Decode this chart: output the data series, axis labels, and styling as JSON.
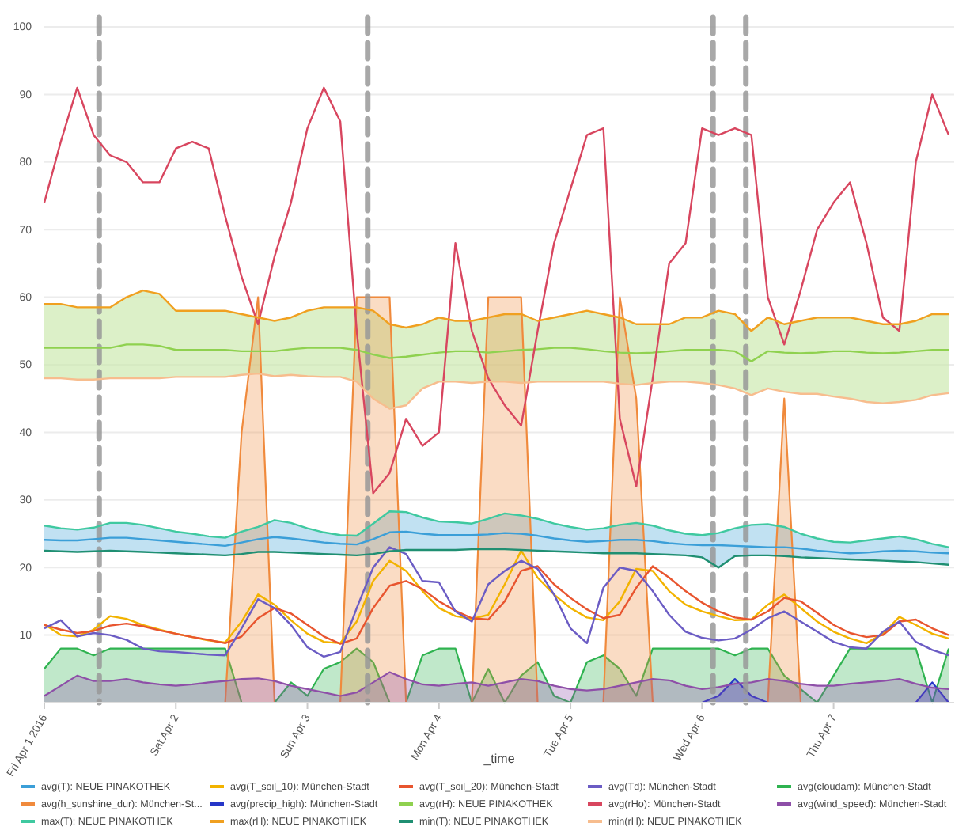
{
  "chart_data": {
    "type": "line",
    "xlabel": "_time",
    "legend": "bottom",
    "grid": "y",
    "xlim": [
      "2016-04-01T00:00",
      "2016-04-07T22:00"
    ],
    "xticks": [
      {
        "value": "2016-04-01",
        "label": "Fri Apr 1 2016"
      },
      {
        "value": "2016-04-02",
        "label": "Sat Apr 2"
      },
      {
        "value": "2016-04-03",
        "label": "Sun Apr 3"
      },
      {
        "value": "2016-04-04",
        "label": "Mon Apr 4"
      },
      {
        "value": "2016-04-05",
        "label": "Tue Apr 5"
      },
      {
        "value": "2016-04-06",
        "label": "Wed Apr 6"
      },
      {
        "value": "2016-04-07",
        "label": "Thu Apr 7"
      }
    ],
    "ylim": [
      0,
      100
    ],
    "yticks": [
      10,
      20,
      30,
      40,
      50,
      60,
      70,
      80,
      90,
      100
    ],
    "ref_lines": [
      {
        "axis": "x",
        "value": "2016-04-01T10:00",
        "color": "#999999",
        "line_style": "dashed"
      },
      {
        "axis": "x",
        "value": "2016-04-03T11:00",
        "color": "#999999",
        "line_style": "dashed"
      },
      {
        "axis": "x",
        "value": "2016-04-06T02:00",
        "color": "#999999",
        "line_style": "dashed"
      },
      {
        "axis": "x",
        "value": "2016-04-06T08:00",
        "color": "#999999",
        "line_style": "dashed"
      }
    ],
    "x": [
      "2016-04-01T00:00",
      "2016-04-01T03:00",
      "2016-04-01T06:00",
      "2016-04-01T09:00",
      "2016-04-01T12:00",
      "2016-04-01T15:00",
      "2016-04-01T18:00",
      "2016-04-01T21:00",
      "2016-04-02T00:00",
      "2016-04-02T03:00",
      "2016-04-02T06:00",
      "2016-04-02T09:00",
      "2016-04-02T12:00",
      "2016-04-02T15:00",
      "2016-04-02T18:00",
      "2016-04-02T21:00",
      "2016-04-03T00:00",
      "2016-04-03T03:00",
      "2016-04-03T06:00",
      "2016-04-03T09:00",
      "2016-04-03T12:00",
      "2016-04-03T15:00",
      "2016-04-03T18:00",
      "2016-04-03T21:00",
      "2016-04-04T00:00",
      "2016-04-04T03:00",
      "2016-04-04T06:00",
      "2016-04-04T09:00",
      "2016-04-04T12:00",
      "2016-04-04T15:00",
      "2016-04-04T18:00",
      "2016-04-04T21:00",
      "2016-04-05T00:00",
      "2016-04-05T03:00",
      "2016-04-05T06:00",
      "2016-04-05T09:00",
      "2016-04-05T12:00",
      "2016-04-05T15:00",
      "2016-04-05T18:00",
      "2016-04-05T21:00",
      "2016-04-06T00:00",
      "2016-04-06T03:00",
      "2016-04-06T06:00",
      "2016-04-06T09:00",
      "2016-04-06T12:00",
      "2016-04-06T15:00",
      "2016-04-06T18:00",
      "2016-04-06T21:00",
      "2016-04-07T00:00",
      "2016-04-07T03:00",
      "2016-04-07T06:00",
      "2016-04-07T09:00",
      "2016-04-07T12:00",
      "2016-04-07T15:00",
      "2016-04-07T18:00",
      "2016-04-07T21:00"
    ],
    "series": [
      {
        "name": "avg(T): NEUE PINAKOTHEK",
        "type": "line",
        "color": "#3b9fd8",
        "values": [
          24.1,
          24,
          24,
          24.2,
          24.4,
          24.4,
          24.2,
          24,
          23.8,
          23.6,
          23.4,
          23.2,
          23.7,
          24.2,
          24.5,
          24.3,
          24,
          23.7,
          23.5,
          23.4,
          24.2,
          25.2,
          25.3,
          25,
          24.8,
          24.8,
          24.8,
          24.9,
          25.1,
          25,
          24.7,
          24.3,
          24,
          23.8,
          23.9,
          24.1,
          24.1,
          23.9,
          23.6,
          23.4,
          23.3,
          23.3,
          23.2,
          23.1,
          23,
          23,
          22.8,
          22.5,
          22.3,
          22.1,
          22.2,
          22.4,
          22.5,
          22.4,
          22.2,
          22.1
        ],
        "lower": [
          22.5,
          22.4,
          22.3,
          22.4,
          22.5,
          22.4,
          22.3,
          22.2,
          22.1,
          22,
          21.9,
          21.8,
          22,
          22.3,
          22.3,
          22.2,
          22.1,
          22,
          21.9,
          21.8,
          22,
          22.4,
          22.6,
          22.6,
          22.6,
          22.6,
          22.7,
          22.7,
          22.7,
          22.6,
          22.5,
          22.4,
          22.3,
          22.2,
          22.1,
          22.1,
          22.1,
          22,
          21.9,
          21.8,
          21.5,
          20,
          21.7,
          21.8,
          21.8,
          21.7,
          21.5,
          21.4,
          21.3,
          21.2,
          21.1,
          21,
          20.9,
          20.8,
          20.6,
          20.4
        ],
        "upper": [
          26.2,
          25.8,
          25.6,
          25.9,
          26.6,
          26.6,
          26.3,
          25.8,
          25.3,
          25,
          24.6,
          24.4,
          25.3,
          26,
          27,
          26.6,
          25.8,
          25.2,
          24.8,
          24.7,
          26.5,
          28.3,
          28.2,
          27.4,
          26.8,
          26.7,
          26.5,
          27.2,
          28,
          27.7,
          27.2,
          26.5,
          26,
          25.6,
          25.8,
          26.3,
          26.6,
          26.2,
          25.5,
          25,
          24.8,
          25.1,
          25.8,
          26.3,
          26.4,
          26,
          25,
          24.3,
          23.8,
          23.7,
          24,
          24.3,
          24.6,
          24.2,
          23.5,
          23
        ]
      },
      {
        "name": "avg(T_soil_10): München-Stadt",
        "type": "line",
        "color": "#f2b300",
        "values": [
          11.6,
          10,
          9.8,
          10.8,
          12.8,
          12.4,
          11.5,
          10.8,
          10.2,
          9.7,
          9.2,
          8.9,
          12,
          16,
          14.5,
          12.2,
          10.2,
          9,
          8.8,
          12,
          18,
          21,
          19.5,
          16.5,
          14,
          12.8,
          12.4,
          13,
          17.5,
          22.5,
          18.5,
          16,
          14,
          12.6,
          12.2,
          15,
          19.8,
          19.5,
          16.5,
          14.5,
          13.5,
          12.8,
          12.2,
          12.3,
          14.5,
          16,
          14,
          12,
          10.5,
          9.5,
          8.8,
          10.2,
          12.7,
          11.5,
          10.2,
          9.5
        ]
      },
      {
        "name": "avg(T_soil_20): München-Stadt",
        "type": "line",
        "color": "#e8552f",
        "values": [
          11.5,
          10.8,
          10.3,
          10.6,
          11.4,
          11.7,
          11.3,
          10.7,
          10.2,
          9.7,
          9.3,
          8.8,
          9.8,
          12.5,
          14,
          13.2,
          11.5,
          9.8,
          8.7,
          9.5,
          14,
          17.3,
          18,
          16.8,
          15,
          13.6,
          12.5,
          12.3,
          15,
          19.5,
          20.2,
          17.5,
          15.5,
          13.8,
          12.5,
          13,
          17,
          20.2,
          18.5,
          16.5,
          14.8,
          13.5,
          12.6,
          12.3,
          13.5,
          15.5,
          15,
          13.3,
          11.5,
          10.3,
          9.7,
          10,
          12,
          12.3,
          11,
          10
        ]
      },
      {
        "name": "avg(Td): München-Stadt",
        "type": "line",
        "color": "#6b5cc4",
        "values": [
          11,
          12.2,
          9.8,
          10.3,
          10,
          9.3,
          8,
          7.6,
          7.5,
          7.3,
          7.1,
          7,
          11,
          15.3,
          14,
          11.5,
          8.2,
          6.8,
          7.5,
          14,
          20,
          23,
          22,
          18,
          17.8,
          13.5,
          12,
          17.5,
          19.5,
          21,
          19.8,
          16,
          11,
          8.8,
          17,
          20,
          19.5,
          16.5,
          13,
          10.5,
          9.6,
          9.2,
          9.5,
          10.8,
          12.5,
          13.5,
          12,
          10.5,
          9,
          8.2,
          8,
          10.5,
          12,
          9,
          7.8,
          7
        ]
      },
      {
        "name": "avg(cloudam): München-Stadt",
        "type": "area",
        "color": "#2fb350",
        "values": [
          5,
          8,
          8,
          7,
          8,
          8,
          8,
          8,
          8,
          8,
          8,
          8,
          0,
          0,
          0,
          3,
          1,
          5,
          6,
          8,
          6,
          0,
          0,
          7,
          8,
          8,
          0,
          5,
          0,
          4,
          6,
          1,
          0,
          6,
          7,
          5,
          1,
          8,
          8,
          8,
          8,
          8,
          7,
          8,
          8,
          4,
          2,
          0,
          4,
          8,
          8,
          8,
          8,
          8,
          0,
          8
        ]
      },
      {
        "name": "avg(h_sunshine_dur): München-St...",
        "type": "area",
        "color": "#f08a3c",
        "values": [
          0,
          0,
          0,
          0,
          0,
          0,
          0,
          0,
          0,
          0,
          0,
          0,
          40,
          60,
          0,
          0,
          0,
          0,
          0,
          60,
          60,
          60,
          0,
          0,
          0,
          0,
          0,
          60,
          60,
          60,
          0,
          0,
          0,
          0,
          0,
          60,
          45,
          0,
          0,
          0,
          0,
          0,
          0,
          0,
          0,
          45,
          0,
          0,
          0,
          0,
          0,
          0,
          0,
          0,
          0,
          0
        ]
      },
      {
        "name": "avg(precip_high): München-Stadt",
        "type": "area",
        "color": "#2636c8",
        "values": [
          0,
          0,
          0,
          0,
          0,
          0,
          0,
          0,
          0,
          0,
          0,
          0,
          0,
          0,
          0,
          0,
          0,
          0,
          0,
          0,
          0,
          0,
          0,
          0,
          0,
          0,
          0,
          0,
          0,
          0,
          0,
          0,
          0,
          0,
          0,
          0,
          0,
          0,
          0,
          0,
          0,
          1,
          3.5,
          1,
          0,
          0,
          0,
          0,
          0,
          0,
          0,
          0,
          0,
          0,
          3,
          0
        ]
      },
      {
        "name": "avg(rH): NEUE PINAKOTHEK",
        "type": "line",
        "color": "#8fd14f",
        "values": [
          52.5,
          52.5,
          52.5,
          52.5,
          52.5,
          53,
          53,
          52.8,
          52.2,
          52.2,
          52.2,
          52.2,
          52,
          52,
          52,
          52.3,
          52.5,
          52.5,
          52.5,
          52.2,
          51.5,
          51,
          51.2,
          51.5,
          51.8,
          52,
          52,
          51.8,
          52,
          52.2,
          52.3,
          52.5,
          52.5,
          52.3,
          52,
          51.8,
          51.7,
          51.8,
          52,
          52.2,
          52.2,
          52.2,
          52,
          50.5,
          52,
          51.8,
          51.7,
          51.8,
          52,
          52,
          51.8,
          51.7,
          51.8,
          52,
          52.2,
          52.2
        ],
        "lower": [
          48,
          48,
          47.8,
          47.8,
          48,
          48,
          48,
          48,
          48.2,
          48.2,
          48.2,
          48.2,
          48.5,
          48.7,
          48.3,
          48.5,
          48.3,
          48.2,
          48.2,
          47.5,
          45,
          43.5,
          44,
          46.5,
          47.5,
          47.5,
          47.3,
          47.5,
          47.5,
          47.3,
          47.5,
          47.5,
          47.5,
          47.5,
          47.5,
          47.2,
          47,
          47.3,
          47.5,
          47.5,
          47.3,
          47,
          46.5,
          45.5,
          46.5,
          46,
          45.7,
          45.7,
          45.3,
          45,
          44.5,
          44.3,
          44.5,
          44.8,
          45.5,
          45.8
        ],
        "upper": [
          59,
          59,
          58.5,
          58.5,
          58.5,
          60,
          61,
          60.5,
          58,
          58,
          58,
          58,
          57.5,
          57,
          56.5,
          57,
          58,
          58.5,
          58.5,
          58.5,
          58,
          56,
          55.5,
          56,
          57,
          56.5,
          56.5,
          57,
          57.5,
          57.5,
          56.5,
          57,
          57.5,
          58,
          57.5,
          57,
          56,
          56,
          56,
          57,
          57,
          58,
          57.5,
          55,
          57,
          56,
          56.5,
          57,
          57,
          57,
          56.5,
          56,
          56,
          56.5,
          57.5,
          57.5
        ]
      },
      {
        "name": "avg(rHo): München-Stadt",
        "type": "line",
        "color": "#d8465f",
        "values": [
          74,
          83,
          91,
          84,
          81,
          80,
          77,
          77,
          82,
          83,
          82,
          72,
          63,
          56,
          66,
          74,
          85,
          91,
          86,
          55,
          31,
          34,
          42,
          38,
          40,
          68,
          55,
          48,
          44,
          41,
          55,
          68,
          76,
          84,
          85,
          42,
          32,
          48,
          65,
          68,
          85,
          84,
          85,
          84,
          60,
          53,
          61,
          70,
          74,
          77,
          68,
          57,
          55,
          80,
          90,
          84
        ]
      },
      {
        "name": "avg(wind_speed): München-Stadt",
        "type": "area",
        "color": "#8e4fa8",
        "values": [
          1,
          2.5,
          4,
          3.2,
          3.2,
          3.5,
          3,
          2.7,
          2.5,
          2.7,
          3,
          3.2,
          3.5,
          3.6,
          3.2,
          2.5,
          2,
          1.5,
          1,
          1.5,
          3,
          4.5,
          3.5,
          2.7,
          2.5,
          2.8,
          3,
          2.5,
          3,
          3.5,
          3.2,
          2.5,
          2,
          1.8,
          2,
          2.5,
          3,
          3.5,
          3.3,
          2.5,
          2,
          2.3,
          2.8,
          3,
          3.5,
          3.2,
          2.8,
          2.5,
          2.5,
          2.8,
          3,
          3.2,
          3.5,
          2.8,
          2.2,
          2
        ]
      },
      {
        "name": "max(T): NEUE PINAKOTHEK",
        "type": "line",
        "color": "#3fc9a0",
        "values": [
          26.2,
          25.8,
          25.6,
          25.9,
          26.6,
          26.6,
          26.3,
          25.8,
          25.3,
          25,
          24.6,
          24.4,
          25.3,
          26,
          27,
          26.6,
          25.8,
          25.2,
          24.8,
          24.7,
          26.5,
          28.3,
          28.2,
          27.4,
          26.8,
          26.7,
          26.5,
          27.2,
          28,
          27.7,
          27.2,
          26.5,
          26,
          25.6,
          25.8,
          26.3,
          26.6,
          26.2,
          25.5,
          25,
          24.8,
          25.1,
          25.8,
          26.3,
          26.4,
          26,
          25,
          24.3,
          23.8,
          23.7,
          24,
          24.3,
          24.6,
          24.2,
          23.5,
          23
        ]
      },
      {
        "name": "max(rH): NEUE PINAKOTHEK",
        "type": "line",
        "color": "#f0a020",
        "values": [
          59,
          59,
          58.5,
          58.5,
          58.5,
          60,
          61,
          60.5,
          58,
          58,
          58,
          58,
          57.5,
          57,
          56.5,
          57,
          58,
          58.5,
          58.5,
          58.5,
          58,
          56,
          55.5,
          56,
          57,
          56.5,
          56.5,
          57,
          57.5,
          57.5,
          56.5,
          57,
          57.5,
          58,
          57.5,
          57,
          56,
          56,
          56,
          57,
          57,
          58,
          57.5,
          55,
          57,
          56,
          56.5,
          57,
          57,
          57,
          56.5,
          56,
          56,
          56.5,
          57.5,
          57.5
        ]
      },
      {
        "name": "min(T): NEUE PINAKOTHEK",
        "type": "line",
        "color": "#1f8f72",
        "values": [
          22.5,
          22.4,
          22.3,
          22.4,
          22.5,
          22.4,
          22.3,
          22.2,
          22.1,
          22,
          21.9,
          21.8,
          22,
          22.3,
          22.3,
          22.2,
          22.1,
          22,
          21.9,
          21.8,
          22,
          22.4,
          22.6,
          22.6,
          22.6,
          22.6,
          22.7,
          22.7,
          22.7,
          22.6,
          22.5,
          22.4,
          22.3,
          22.2,
          22.1,
          22.1,
          22.1,
          22,
          21.9,
          21.8,
          21.5,
          20,
          21.7,
          21.8,
          21.8,
          21.7,
          21.5,
          21.4,
          21.3,
          21.2,
          21.1,
          21,
          20.9,
          20.8,
          20.6,
          20.4
        ]
      },
      {
        "name": "min(rH): NEUE PINAKOTHEK",
        "type": "line",
        "color": "#f7bd8e",
        "values": [
          48,
          48,
          47.8,
          47.8,
          48,
          48,
          48,
          48,
          48.2,
          48.2,
          48.2,
          48.2,
          48.5,
          48.7,
          48.3,
          48.5,
          48.3,
          48.2,
          48.2,
          47.5,
          45,
          43.5,
          44,
          46.5,
          47.5,
          47.5,
          47.3,
          47.5,
          47.5,
          47.3,
          47.5,
          47.5,
          47.5,
          47.5,
          47.5,
          47.2,
          47,
          47.3,
          47.5,
          47.5,
          47.3,
          47,
          46.5,
          45.5,
          46.5,
          46,
          45.7,
          45.7,
          45.3,
          45,
          44.5,
          44.3,
          44.5,
          44.8,
          45.5,
          45.8
        ]
      }
    ]
  }
}
